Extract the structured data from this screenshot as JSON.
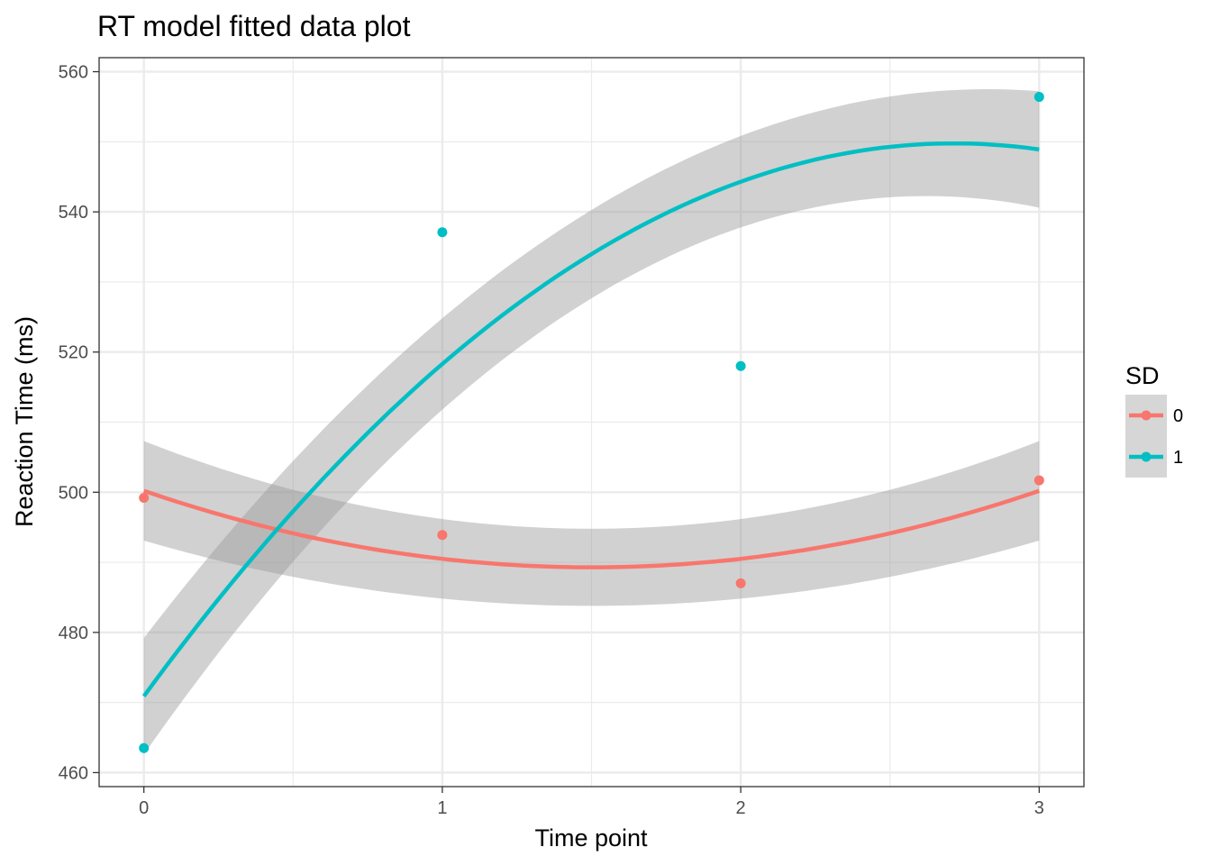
{
  "chart_data": {
    "type": "line",
    "title": "RT model fitted data plot",
    "xlabel": "Time point",
    "ylabel": "Reaction Time (ms)",
    "xlim": [
      -0.15,
      3.15
    ],
    "ylim": [
      458,
      562
    ],
    "x_ticks": [
      0,
      1,
      2,
      3
    ],
    "x_tick_labels": [
      "0",
      "1",
      "2",
      "3"
    ],
    "y_ticks": [
      460,
      480,
      500,
      520,
      540,
      560
    ],
    "y_tick_labels": [
      "460",
      "480",
      "500",
      "520",
      "540",
      "560"
    ],
    "grid": true,
    "legend": {
      "title": "SD",
      "position": "right"
    },
    "series": [
      {
        "name": "0",
        "color": "#F8766D",
        "points": [
          {
            "x": 0,
            "y": 499.2
          },
          {
            "x": 1,
            "y": 493.9
          },
          {
            "x": 2,
            "y": 487.0
          },
          {
            "x": 3,
            "y": 501.7
          }
        ],
        "fit_coefficients": {
          "a": 4.85,
          "b": -14.55,
          "c": 500.2
        },
        "ci_halfwidth": {
          "end": 7.1,
          "mid": 5.5
        }
      },
      {
        "name": "1",
        "color": "#00BFC4",
        "points": [
          {
            "x": 0,
            "y": 463.5
          },
          {
            "x": 1,
            "y": 537.1
          },
          {
            "x": 2,
            "y": 518.0
          },
          {
            "x": 3,
            "y": 556.4
          }
        ],
        "fit_coefficients": {
          "a": -10.7,
          "b": 58.1,
          "c": 470.9
        },
        "ci_halfwidth": {
          "end": 8.3,
          "mid": 6.3
        }
      }
    ]
  }
}
